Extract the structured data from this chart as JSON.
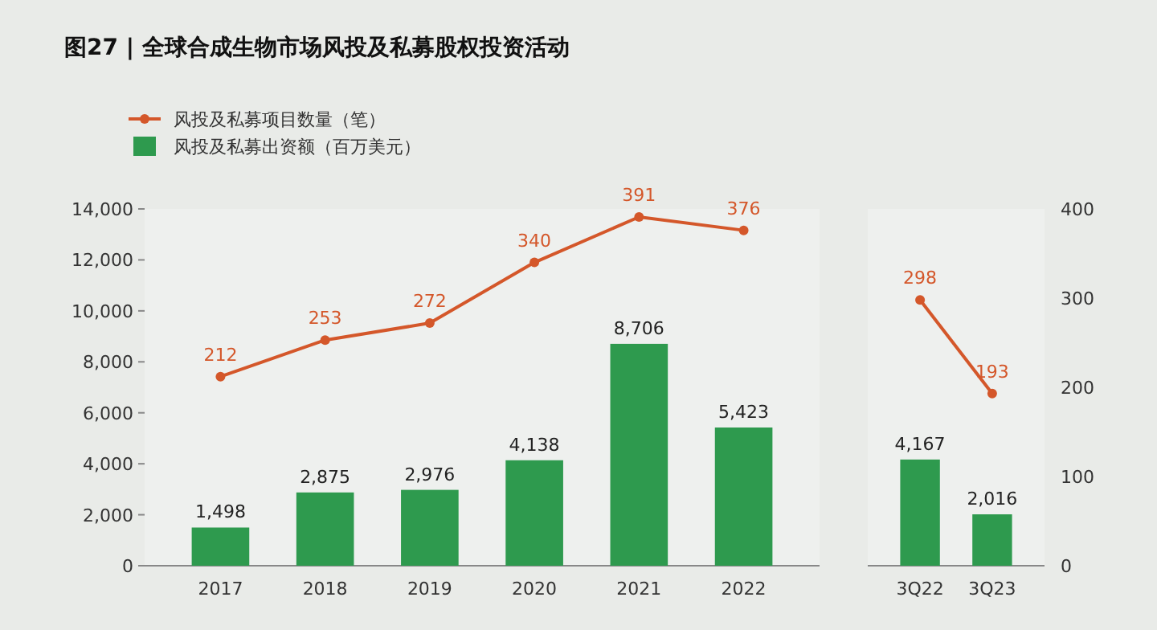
{
  "chart_data": [
    {
      "type": "bar",
      "title": "图27 | 全球合成生物市场风投及私募股权投资活动",
      "categories": [
        "2017",
        "2018",
        "2019",
        "2020",
        "2021",
        "2022"
      ],
      "series": [
        {
          "name": "风投及私募项目数量（笔）",
          "type": "line",
          "axis": "y2",
          "color": "#d4572a",
          "values": [
            212,
            253,
            272,
            340,
            391,
            376
          ]
        },
        {
          "name": "风投及私募出资额（百万美元）",
          "color": "#2e9a4e",
          "values": [
            1498,
            2875,
            2976,
            4138,
            8706,
            5423
          ],
          "value_labels": [
            "1,498",
            "2,875",
            "2,976",
            "4,138",
            "8,706",
            "5,423"
          ]
        }
      ],
      "ylim": [
        0,
        14000
      ],
      "yticks": [
        {
          "value": 0,
          "label": "0"
        },
        {
          "value": 2000,
          "label": "2,000"
        },
        {
          "value": 4000,
          "label": "4,000"
        },
        {
          "value": 6000,
          "label": "6,000"
        },
        {
          "value": 8000,
          "label": "8,000"
        },
        {
          "value": 10000,
          "label": "10,000"
        },
        {
          "value": 12000,
          "label": "12,000"
        },
        {
          "value": 14000,
          "label": "14,000"
        }
      ],
      "y2lim": [
        0,
        400
      ],
      "marker": "circle",
      "data_labels": true,
      "legend": "top left"
    },
    {
      "type": "bar",
      "categories": [
        "3Q22",
        "3Q23"
      ],
      "series": [
        {
          "type": "line",
          "axis": "y2",
          "color": "#d4572a",
          "values": [
            298,
            193
          ]
        },
        {
          "color": "#2e9a4e",
          "values": [
            4167,
            2016
          ],
          "value_labels": [
            "4,167",
            "2,016"
          ]
        }
      ],
      "ylim": [
        0,
        14000
      ],
      "y2lim": [
        0,
        400
      ],
      "y2ticks": [
        0,
        100,
        200,
        300,
        400
      ],
      "marker": "circle",
      "data_labels": true
    }
  ]
}
